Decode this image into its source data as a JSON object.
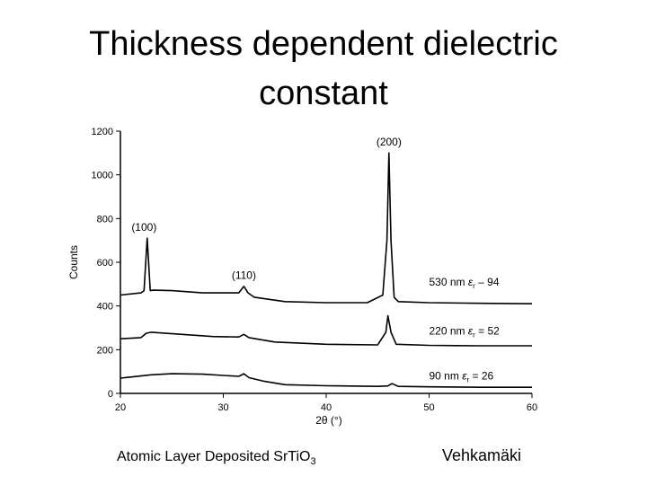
{
  "slide": {
    "title_line1": "Thickness dependent dielectric",
    "title_line2": "constant",
    "footer_left_prefix": "Atomic Layer Deposited SrTiO",
    "footer_left_subscript": "3",
    "footer_right": "Vehkamäki"
  },
  "chart_data": {
    "type": "line",
    "title": "",
    "xlabel": "2θ (°)",
    "ylabel": "Counts",
    "xlim": [
      20,
      60
    ],
    "ylim": [
      0,
      1200
    ],
    "xticks": [
      20,
      30,
      40,
      50,
      60
    ],
    "yticks": [
      0,
      200,
      400,
      600,
      800,
      1000,
      1200
    ],
    "grid": false,
    "series": [
      {
        "name": "530 nm εr = 94",
        "color": "#000000",
        "x": [
          20.0,
          22.0,
          22.3,
          22.6,
          22.9,
          23.2,
          25.0,
          28.0,
          31.5,
          32.0,
          32.4,
          33.0,
          36.0,
          40.0,
          44.0,
          45.5,
          45.9,
          46.1,
          46.3,
          46.6,
          47.0,
          50.0,
          55.0,
          60.0
        ],
        "y": [
          450,
          460,
          470,
          710,
          470,
          472,
          470,
          460,
          460,
          490,
          460,
          440,
          420,
          415,
          415,
          450,
          700,
          1100,
          700,
          440,
          420,
          415,
          412,
          410
        ]
      },
      {
        "name": "220 nm εr = 52",
        "color": "#000000",
        "x": [
          20.0,
          22.0,
          22.5,
          23.0,
          26.0,
          29.0,
          31.5,
          32.0,
          32.5,
          35.0,
          40.0,
          45.0,
          45.8,
          46.0,
          46.3,
          46.8,
          50.0,
          55.0,
          60.0
        ],
        "y": [
          250,
          255,
          275,
          280,
          270,
          260,
          258,
          270,
          255,
          235,
          225,
          222,
          280,
          355,
          280,
          225,
          220,
          218,
          218
        ]
      },
      {
        "name": "90 nm εr = 26",
        "color": "#000000",
        "x": [
          20.0,
          21.0,
          23.0,
          25.0,
          28.0,
          30.0,
          31.5,
          32.0,
          32.5,
          34.0,
          36.0,
          40.0,
          45.0,
          46.0,
          46.4,
          47.0,
          50.0,
          55.0,
          60.0
        ],
        "y": [
          70,
          75,
          85,
          90,
          88,
          82,
          78,
          90,
          72,
          55,
          40,
          35,
          32,
          34,
          45,
          32,
          30,
          28,
          28
        ]
      }
    ],
    "annotations": [
      {
        "text": "(100)",
        "x": 22.3,
        "y": 720
      },
      {
        "text": "(110)",
        "x": 32.0,
        "y": 500
      },
      {
        "text": "(200)",
        "x": 46.1,
        "y": 1110
      }
    ],
    "series_labels": [
      {
        "prefix": "530 nm ",
        "symbol": "ε",
        "sub": "r",
        "suffix": " – 94",
        "x": 50.0,
        "y": 510
      },
      {
        "prefix": "220 nm ",
        "symbol": "ε",
        "sub": "r",
        "suffix": " = 52",
        "x": 50.0,
        "y": 285
      },
      {
        "prefix": "90 nm ",
        "symbol": "ε",
        "sub": "r",
        "suffix": " = 26",
        "x": 50.0,
        "y": 80
      }
    ]
  }
}
